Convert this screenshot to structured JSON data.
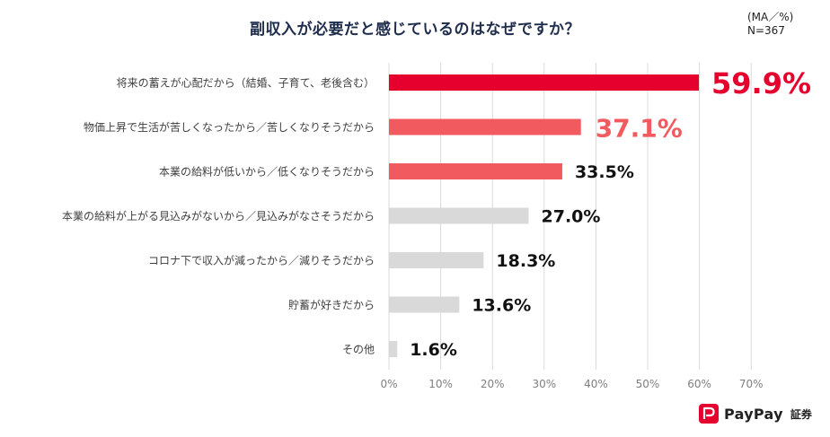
{
  "header": {
    "scale_note": "(MA／%)",
    "sample_note": "N=367"
  },
  "brand": {
    "name": "PayPay",
    "sub": "証券",
    "color": "#e6002d"
  },
  "colors": {
    "top": "#e6002d",
    "high": "#f15a5e",
    "low": "#d9d9d9",
    "grid": "#d9d9d9",
    "label_red": "#e6002d",
    "label_pink": "#f15a5e",
    "label_dark": "#111111"
  },
  "chart_data": {
    "type": "bar",
    "orientation": "horizontal",
    "title": "副収入が必要だと感じているのはなぜですか？",
    "xlabel": "",
    "ylabel": "",
    "xlim": [
      0,
      70
    ],
    "ticks": [
      0,
      10,
      20,
      30,
      40,
      50,
      60,
      70
    ],
    "tick_labels": [
      "0%",
      "10%",
      "20%",
      "30%",
      "40%",
      "50%",
      "60%",
      "70%"
    ],
    "grid": true,
    "categories": [
      "将来の蓄えが心配だから（結婚、子育て、老後含む）",
      "物価上昇で生活が苦しくなったから／苦しくなりそうだから",
      "本業の給料が低いから／低くなりそうだから",
      "本業の給料が上がる見込みがないから／見込みがなさそうだから",
      "コロナ下で収入が減ったから／減りそうだから",
      "貯蓄が好きだから",
      "その他"
    ],
    "values": [
      59.9,
      37.1,
      33.5,
      27.0,
      18.3,
      13.6,
      1.6
    ],
    "value_labels": [
      "59.9%",
      "37.1%",
      "33.5%",
      "27.0%",
      "18.3%",
      "13.6%",
      "1.6%"
    ]
  }
}
